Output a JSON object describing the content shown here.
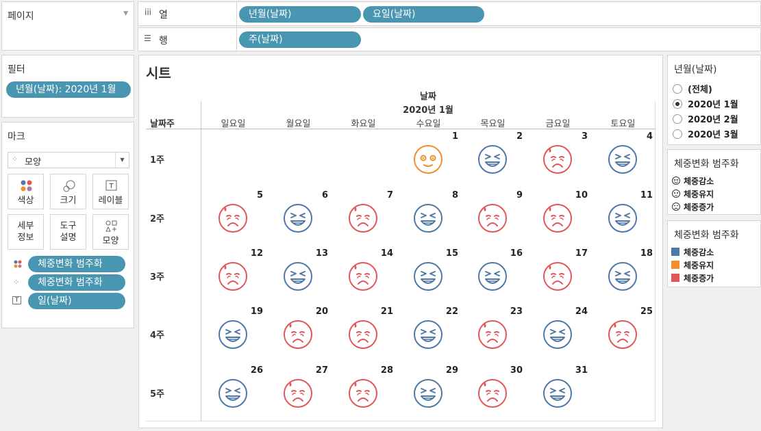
{
  "pages_shelf": {
    "title": "페이지"
  },
  "columns_shelf": {
    "icon": "iii",
    "title": "열",
    "pills": [
      "년월(날짜)",
      "요일(날짜)"
    ]
  },
  "rows_shelf": {
    "icon": "☰",
    "title": "행",
    "pills": [
      "주(날짜)"
    ]
  },
  "filters": {
    "title": "필터",
    "pill": "년월(날짜): 2020년 1월"
  },
  "marks": {
    "title": "마크",
    "mark_type": "모양",
    "buttons": [
      "색상",
      "크기",
      "레이블",
      "세부\n정보",
      "도구\n설명",
      "모양"
    ],
    "fields": [
      "체중변화 범주화",
      "체중변화 범주화",
      "일(날짜)"
    ]
  },
  "sheet": {
    "title": "시트",
    "top_header": "날짜",
    "month_header": "2020년 1월",
    "row_field_label": "날짜주",
    "weekdays": [
      "일요일",
      "월요일",
      "화요일",
      "수요일",
      "목요일",
      "금요일",
      "토요일"
    ],
    "weeks": [
      "1주",
      "2주",
      "3주",
      "4주",
      "5주"
    ],
    "days": [
      {
        "d": "1",
        "w": 0,
        "c": 3,
        "s": "유지"
      },
      {
        "d": "2",
        "w": 0,
        "c": 4,
        "s": "감소"
      },
      {
        "d": "3",
        "w": 0,
        "c": 5,
        "s": "증가"
      },
      {
        "d": "4",
        "w": 0,
        "c": 6,
        "s": "감소"
      },
      {
        "d": "5",
        "w": 1,
        "c": 0,
        "s": "증가"
      },
      {
        "d": "6",
        "w": 1,
        "c": 1,
        "s": "감소"
      },
      {
        "d": "7",
        "w": 1,
        "c": 2,
        "s": "증가"
      },
      {
        "d": "8",
        "w": 1,
        "c": 3,
        "s": "감소"
      },
      {
        "d": "9",
        "w": 1,
        "c": 4,
        "s": "증가"
      },
      {
        "d": "10",
        "w": 1,
        "c": 5,
        "s": "증가"
      },
      {
        "d": "11",
        "w": 1,
        "c": 6,
        "s": "감소"
      },
      {
        "d": "12",
        "w": 2,
        "c": 0,
        "s": "증가"
      },
      {
        "d": "13",
        "w": 2,
        "c": 1,
        "s": "감소"
      },
      {
        "d": "14",
        "w": 2,
        "c": 2,
        "s": "증가"
      },
      {
        "d": "15",
        "w": 2,
        "c": 3,
        "s": "감소"
      },
      {
        "d": "16",
        "w": 2,
        "c": 4,
        "s": "감소"
      },
      {
        "d": "17",
        "w": 2,
        "c": 5,
        "s": "증가"
      },
      {
        "d": "18",
        "w": 2,
        "c": 6,
        "s": "감소"
      },
      {
        "d": "19",
        "w": 3,
        "c": 0,
        "s": "감소"
      },
      {
        "d": "20",
        "w": 3,
        "c": 1,
        "s": "증가"
      },
      {
        "d": "21",
        "w": 3,
        "c": 2,
        "s": "증가"
      },
      {
        "d": "22",
        "w": 3,
        "c": 3,
        "s": "감소"
      },
      {
        "d": "23",
        "w": 3,
        "c": 4,
        "s": "증가"
      },
      {
        "d": "24",
        "w": 3,
        "c": 5,
        "s": "감소"
      },
      {
        "d": "25",
        "w": 3,
        "c": 6,
        "s": "증가"
      },
      {
        "d": "26",
        "w": 4,
        "c": 0,
        "s": "감소"
      },
      {
        "d": "27",
        "w": 4,
        "c": 1,
        "s": "증가"
      },
      {
        "d": "28",
        "w": 4,
        "c": 2,
        "s": "증가"
      },
      {
        "d": "29",
        "w": 4,
        "c": 3,
        "s": "감소"
      },
      {
        "d": "30",
        "w": 4,
        "c": 4,
        "s": "증가"
      },
      {
        "d": "31",
        "w": 4,
        "c": 5,
        "s": "감소"
      }
    ]
  },
  "filter_card": {
    "title": "년월(날짜)",
    "options": [
      "(전체)",
      "2020년 1월",
      "2020년 2월",
      "2020년 3월"
    ],
    "selected": "2020년 1월"
  },
  "shape_legend": {
    "title": "체중변화 범주화",
    "items": [
      "체중감소",
      "체중유지",
      "체중증가"
    ]
  },
  "color_legend": {
    "title": "체중변화 범주화",
    "items": [
      {
        "label": "체중감소",
        "color": "#4e79a7"
      },
      {
        "label": "체중유지",
        "color": "#f28e2b"
      },
      {
        "label": "체중증가",
        "color": "#e15759"
      }
    ]
  },
  "colors": {
    "감소": "#4e79a7",
    "유지": "#f28e2b",
    "증가": "#e15759",
    "pill": "#4996b2"
  }
}
